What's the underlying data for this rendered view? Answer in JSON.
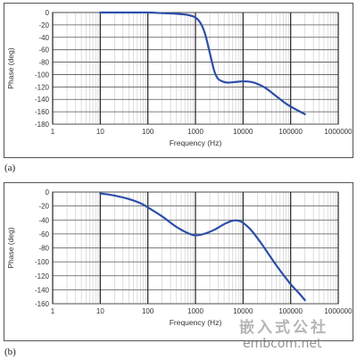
{
  "chart_data": [
    {
      "type": "line",
      "panel_label": "(a)",
      "xlabel": "Frequency (Hz)",
      "ylabel": "Phase (deg)",
      "x_scale": "log",
      "xlim": [
        1,
        1000000
      ],
      "ylim": [
        -180,
        0
      ],
      "x_ticks": [
        1,
        10,
        100,
        1000,
        10000,
        100000,
        1000000
      ],
      "x_tick_labels": [
        "1",
        "10",
        "100",
        "1000",
        "10000",
        "100000",
        "1000000"
      ],
      "y_ticks": [
        0,
        -20,
        -40,
        -60,
        -80,
        -100,
        -120,
        -140,
        -160,
        -180
      ],
      "y_tick_labels": [
        "0",
        "-20",
        "-40",
        "-60",
        "-80",
        "-100",
        "-120",
        "-140",
        "-160",
        "-180"
      ],
      "grid": true,
      "series_color": "#2c4ea8",
      "series": [
        {
          "x": [
            10,
            50,
            100,
            200,
            400,
            700,
            1000,
            1300,
            1600,
            2000,
            2500,
            3000,
            4000,
            5000,
            7000,
            10000,
            15000,
            20000,
            30000,
            50000,
            80000,
            120000,
            200000
          ],
          "y": [
            0,
            0,
            0,
            -1,
            -2,
            -4,
            -8,
            -18,
            -35,
            -65,
            -95,
            -107,
            -112,
            -113,
            -112,
            -111,
            -112,
            -115,
            -122,
            -135,
            -147,
            -155,
            -164
          ]
        }
      ]
    },
    {
      "type": "line",
      "panel_label": "(b)",
      "xlabel": "Frequency (Hz)",
      "ylabel": "Phase (deg)",
      "x_scale": "log",
      "xlim": [
        1,
        1000000
      ],
      "ylim": [
        -160,
        0
      ],
      "x_ticks": [
        1,
        10,
        100,
        1000,
        10000,
        100000,
        1000000
      ],
      "x_tick_labels": [
        "1",
        "10",
        "100",
        "1000",
        "10000",
        "100000",
        "1000000"
      ],
      "y_ticks": [
        0,
        -20,
        -40,
        -60,
        -80,
        -100,
        -120,
        -140,
        -160
      ],
      "y_tick_labels": [
        "0",
        "-20",
        "-40",
        "-60",
        "-80",
        "-100",
        "-120",
        "-140",
        "-160"
      ],
      "grid": true,
      "series_color": "#2c4ea8",
      "series": [
        {
          "x": [
            10,
            20,
            40,
            70,
            100,
            200,
            400,
            700,
            1000,
            1500,
            2500,
            4000,
            6000,
            8000,
            10000,
            15000,
            25000,
            50000,
            100000,
            150000,
            200000
          ],
          "y": [
            -2,
            -5,
            -10,
            -16,
            -22,
            -35,
            -50,
            -59,
            -62,
            -60,
            -54,
            -46,
            -41,
            -41,
            -44,
            -55,
            -75,
            -105,
            -132,
            -145,
            -155
          ]
        }
      ]
    }
  ],
  "watermark": {
    "cn_text": "嵌入式公社",
    "url_text": "embcom.net"
  }
}
